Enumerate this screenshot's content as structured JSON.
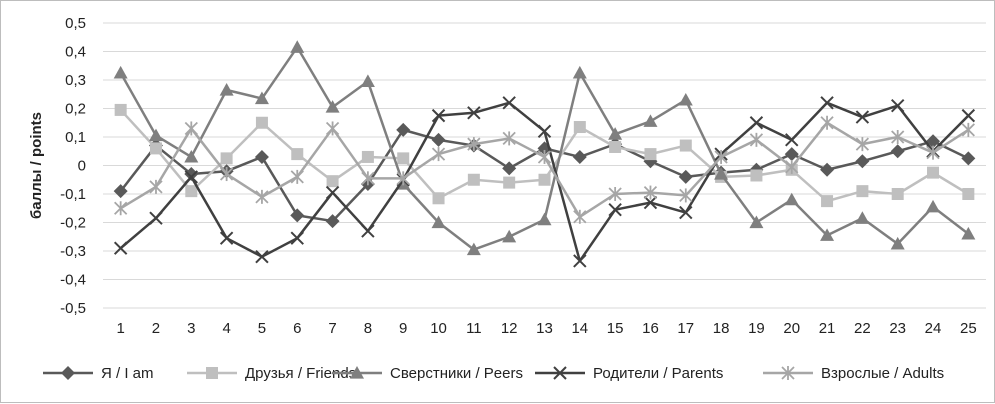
{
  "chart_data": {
    "type": "line",
    "title": "",
    "xlabel": "",
    "ylabel": "баллы / points",
    "categories": [
      "1",
      "2",
      "3",
      "4",
      "5",
      "6",
      "7",
      "8",
      "9",
      "10",
      "11",
      "12",
      "13",
      "14",
      "15",
      "16",
      "17",
      "18",
      "19",
      "20",
      "21",
      "22",
      "23",
      "24",
      "25"
    ],
    "ylim": [
      -0.5,
      0.5
    ],
    "yticks": [
      "0,5",
      "0,4",
      "0,3",
      "0,2",
      "0,1",
      "0",
      "-0,1",
      "-0,2",
      "-0,3",
      "-0,4",
      "-0,5"
    ],
    "ytick_values": [
      0.5,
      0.4,
      0.3,
      0.2,
      0.1,
      0,
      -0.1,
      -0.2,
      -0.3,
      -0.4,
      -0.5
    ],
    "grid": "horizontal",
    "legend_position": "bottom",
    "series": [
      {
        "name": "Я / I am",
        "color": "#595959",
        "marker": "diamond",
        "values": [
          -0.09,
          0.07,
          -0.03,
          -0.02,
          0.03,
          -0.175,
          -0.195,
          -0.065,
          0.125,
          0.09,
          0.07,
          -0.01,
          0.06,
          0.03,
          0.075,
          0.015,
          -0.04,
          -0.025,
          -0.015,
          0.04,
          -0.015,
          0.015,
          0.05,
          0.085,
          0.025
        ]
      },
      {
        "name": "Друзья / Friends",
        "color": "#bfbfbf",
        "marker": "square",
        "values": [
          0.195,
          0.06,
          -0.09,
          0.025,
          0.15,
          0.04,
          -0.055,
          0.03,
          0.025,
          -0.115,
          -0.05,
          -0.06,
          -0.05,
          0.135,
          0.065,
          0.04,
          0.07,
          -0.04,
          -0.035,
          -0.015,
          -0.125,
          -0.09,
          -0.1,
          -0.025,
          -0.1
        ]
      },
      {
        "name": "Сверстники / Peers",
        "color": "#7f7f7f",
        "marker": "triangle",
        "values": [
          0.325,
          0.105,
          0.03,
          0.265,
          0.235,
          0.415,
          0.205,
          0.295,
          -0.065,
          -0.2,
          -0.295,
          -0.25,
          -0.19,
          0.325,
          0.11,
          0.155,
          0.23,
          -0.03,
          -0.2,
          -0.12,
          -0.245,
          -0.185,
          -0.275,
          -0.145,
          -0.24
        ]
      },
      {
        "name": "Родители / Parents",
        "color": "#404040",
        "marker": "x",
        "values": [
          -0.29,
          -0.185,
          -0.04,
          -0.255,
          -0.32,
          -0.255,
          -0.095,
          -0.23,
          -0.05,
          0.175,
          0.185,
          0.22,
          0.12,
          -0.335,
          -0.155,
          -0.13,
          -0.165,
          0.04,
          0.15,
          0.09,
          0.22,
          0.17,
          0.21,
          0.05,
          0.175
        ]
      },
      {
        "name": "Взрослые / Adults",
        "color": "#a6a6a6",
        "marker": "star",
        "values": [
          -0.15,
          -0.075,
          0.13,
          -0.03,
          -0.11,
          -0.04,
          0.13,
          -0.045,
          -0.045,
          0.04,
          0.075,
          0.095,
          0.03,
          -0.18,
          -0.1,
          -0.095,
          -0.105,
          0.03,
          0.09,
          -0.005,
          0.15,
          0.075,
          0.1,
          0.045,
          0.125
        ]
      }
    ]
  }
}
